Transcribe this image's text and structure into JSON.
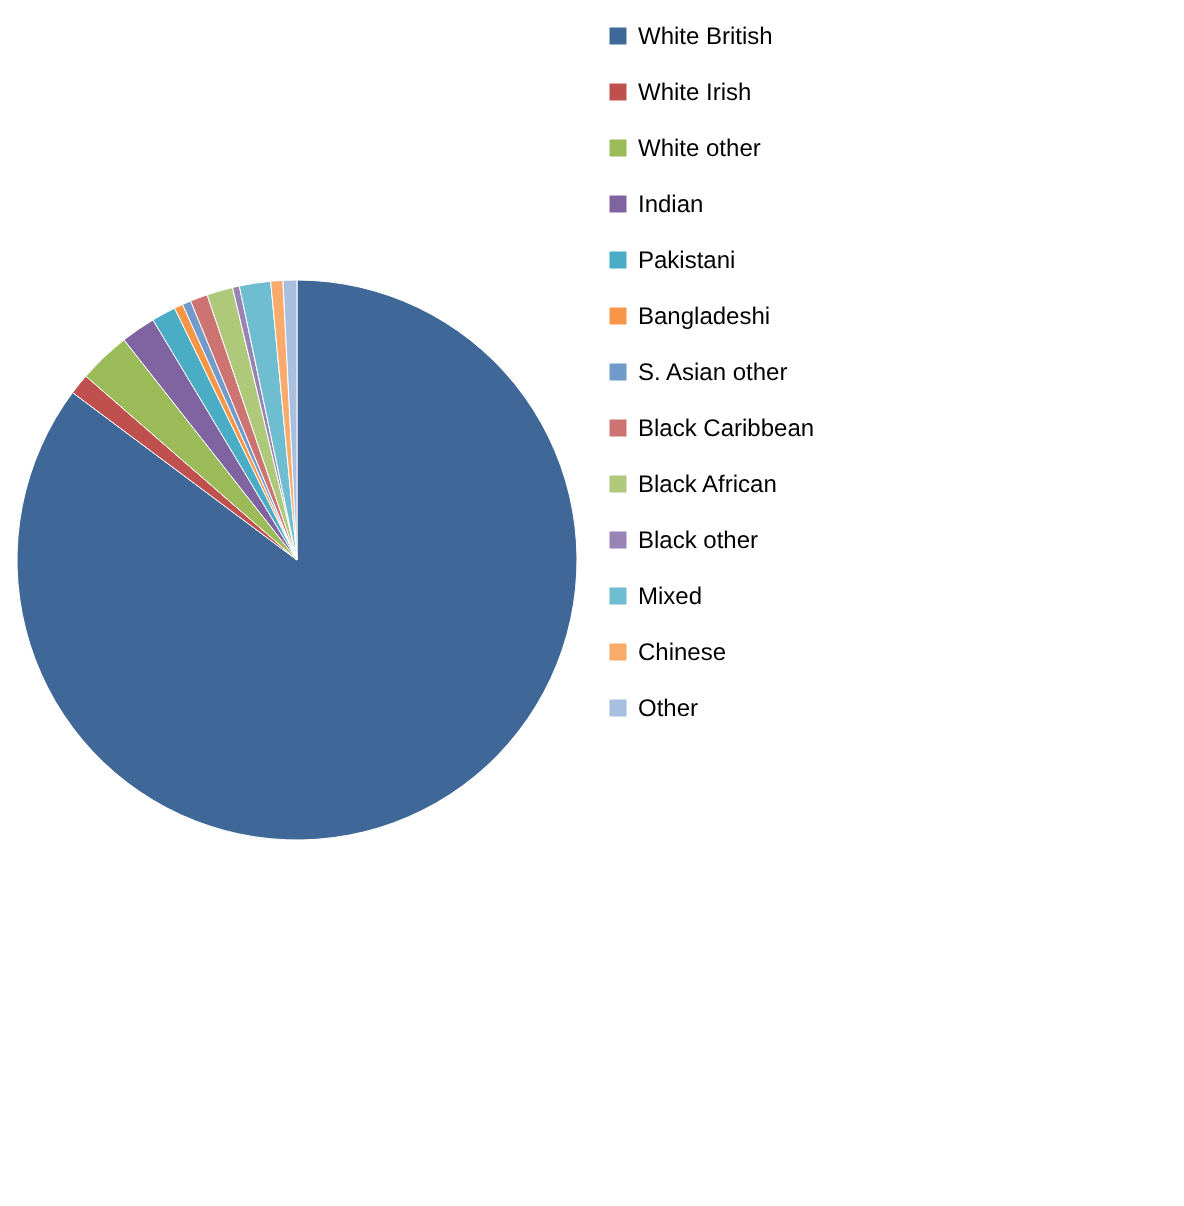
{
  "chart_data": {
    "type": "pie",
    "legend": "right",
    "categories": [
      "White British",
      "White Irish",
      "White other",
      "Indian",
      "Pakistani",
      "Bangladeshi",
      "S. Asian other",
      "Black Caribbean",
      "Black African",
      "Black other",
      "Mixed",
      "Chinese",
      "Other"
    ],
    "values": [
      85.2,
      1.2,
      3,
      2,
      1.4,
      0.5,
      0.5,
      1,
      1.5,
      0.4,
      1.8,
      0.7,
      0.8
    ],
    "colors": [
      "#3f6797",
      "#c0504d",
      "#9bbb59",
      "#8064a2",
      "#4bacc6",
      "#f79646",
      "#729aca",
      "#cd7371",
      "#afc97a",
      "#9983b5",
      "#6fbdd1",
      "#f9ab6b",
      "#a9bfe0"
    ]
  }
}
